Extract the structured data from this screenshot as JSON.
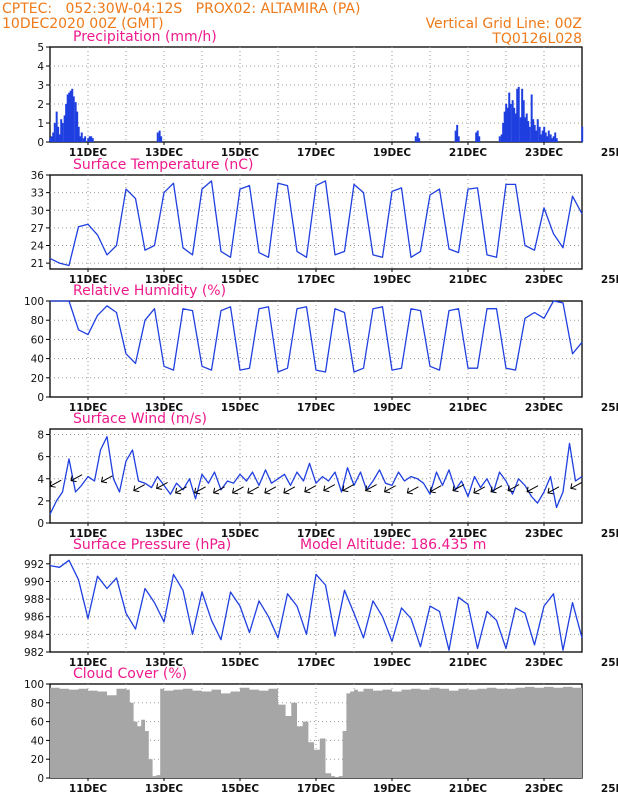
{
  "header": {
    "line1": "CPTEC:   052:30W-04:12S   PROX02: ALTAMIRA (PA)",
    "line2": "10DEC2020 00Z (GMT)",
    "right1": "Vertical Grid Line: 00Z",
    "right2": "TQ0126L028"
  },
  "colors": {
    "header": "#ee7a1a",
    "title": "#ee1a8c",
    "series": "#1f3fe0",
    "cloud": "#a6a6a6",
    "wind_arrow": "#000000"
  },
  "chart_data": [
    {
      "type": "bar",
      "title": "Precipitation (mm/h)",
      "ylim": [
        0,
        5
      ],
      "yticks": [
        0,
        1,
        2,
        3,
        4,
        5
      ],
      "xticks": [
        "11DEC",
        "13DEC",
        "15DEC",
        "17DEC",
        "19DEC",
        "21DEC",
        "23DEC",
        "25DEC"
      ],
      "x_unit": "days since 10DEC2020 00Z",
      "x": [
        0.0,
        0.04,
        0.08,
        0.12,
        0.17,
        0.21,
        0.25,
        0.29,
        0.33,
        0.38,
        0.42,
        0.46,
        0.5,
        0.54,
        0.58,
        0.62,
        0.67,
        0.71,
        0.75,
        0.79,
        0.83,
        0.88,
        0.92,
        1.0,
        1.04,
        1.08,
        1.12,
        2.83,
        2.88,
        2.92,
        9.62,
        9.67,
        9.71,
        10.67,
        10.71,
        10.75,
        11.21,
        11.25,
        11.29,
        11.83,
        11.88,
        11.92,
        11.96,
        12.0,
        12.04,
        12.08,
        12.12,
        12.17,
        12.21,
        12.25,
        12.29,
        12.33,
        12.38,
        12.42,
        12.46,
        12.5,
        12.54,
        12.58,
        12.62,
        12.67,
        12.71,
        12.75,
        12.79,
        12.83,
        12.88,
        12.92,
        12.96,
        13.0,
        13.04,
        13.08,
        13.12,
        13.17,
        13.21,
        13.25,
        13.29,
        13.33,
        14.0
      ],
      "values": [
        0.2,
        0.3,
        0.5,
        1.0,
        1.6,
        0.8,
        0.4,
        1.2,
        1.0,
        1.4,
        2.0,
        2.5,
        2.6,
        2.7,
        2.8,
        2.4,
        2.1,
        1.6,
        0.8,
        0.3,
        0.5,
        0.2,
        0.3,
        0.2,
        0.3,
        0.3,
        0.2,
        0.5,
        0.6,
        0.3,
        0.3,
        0.5,
        0.2,
        0.6,
        0.9,
        0.3,
        0.5,
        0.6,
        0.3,
        0.3,
        0.4,
        1.0,
        1.6,
        2.0,
        1.8,
        2.6,
        2.0,
        2.2,
        1.8,
        1.5,
        2.8,
        2.9,
        1.3,
        2.8,
        2.2,
        1.3,
        1.5,
        1.1,
        0.8,
        2.5,
        1.2,
        0.9,
        0.6,
        1.2,
        0.8,
        0.4,
        0.6,
        0.8,
        0.5,
        0.3,
        0.6,
        0.4,
        0.2,
        0.3,
        0.5,
        0.2,
        0.8
      ]
    },
    {
      "type": "line",
      "title": "Surface Temperature (nC)",
      "ylim": [
        20,
        36
      ],
      "yticks": [
        21,
        24,
        27,
        30,
        33,
        36
      ],
      "xticks": [
        "11DEC",
        "13DEC",
        "15DEC",
        "17DEC",
        "19DEC",
        "21DEC",
        "23DEC",
        "25DEC"
      ],
      "x_unit": "days since 10DEC2020 00Z",
      "x": [
        0.0,
        0.25,
        0.5,
        0.75,
        1.0,
        1.25,
        1.5,
        1.75,
        2.0,
        2.25,
        2.5,
        2.75,
        3.0,
        3.25,
        3.5,
        3.75,
        4.0,
        4.25,
        4.5,
        4.75,
        5.0,
        5.25,
        5.5,
        5.75,
        6.0,
        6.25,
        6.5,
        6.75,
        7.0,
        7.25,
        7.5,
        7.75,
        8.0,
        8.25,
        8.5,
        8.75,
        9.0,
        9.25,
        9.5,
        9.75,
        10.0,
        10.25,
        10.5,
        10.75,
        11.0,
        11.25,
        11.5,
        11.75,
        12.0,
        12.25,
        12.5,
        12.75,
        13.0,
        13.25,
        13.5,
        13.75,
        14.0
      ],
      "values": [
        21.8,
        21.0,
        20.6,
        27.2,
        27.6,
        25.8,
        22.4,
        24.0,
        33.6,
        32.0,
        23.2,
        24.0,
        33.0,
        34.6,
        23.6,
        22.4,
        33.6,
        35.0,
        23.0,
        22.0,
        33.6,
        34.2,
        22.8,
        22.0,
        34.6,
        34.2,
        23.0,
        22.0,
        34.2,
        35.0,
        22.4,
        23.0,
        34.4,
        33.0,
        22.4,
        22.0,
        33.2,
        33.8,
        22.0,
        23.0,
        32.6,
        33.6,
        23.4,
        22.8,
        33.6,
        33.8,
        22.4,
        22.0,
        34.4,
        34.4,
        24.0,
        23.2,
        30.4,
        26.0,
        23.6,
        32.4,
        29.4
      ]
    },
    {
      "type": "line",
      "title": "Relative Humidity (%)",
      "ylim": [
        0,
        100
      ],
      "yticks": [
        0,
        20,
        40,
        60,
        80,
        100
      ],
      "xticks": [
        "11DEC",
        "13DEC",
        "15DEC",
        "17DEC",
        "19DEC",
        "21DEC",
        "23DEC",
        "25DEC"
      ],
      "x_unit": "days since 10DEC2020 00Z",
      "x": [
        0.0,
        0.25,
        0.5,
        0.75,
        1.0,
        1.25,
        1.5,
        1.75,
        2.0,
        2.25,
        2.5,
        2.75,
        3.0,
        3.25,
        3.5,
        3.75,
        4.0,
        4.25,
        4.5,
        4.75,
        5.0,
        5.25,
        5.5,
        5.75,
        6.0,
        6.25,
        6.5,
        6.75,
        7.0,
        7.25,
        7.5,
        7.75,
        8.0,
        8.25,
        8.5,
        8.75,
        9.0,
        9.25,
        9.5,
        9.75,
        10.0,
        10.25,
        10.5,
        10.75,
        11.0,
        11.25,
        11.5,
        11.75,
        12.0,
        12.25,
        12.5,
        12.75,
        13.0,
        13.25,
        13.5,
        13.75,
        14.0
      ],
      "values": [
        100,
        100,
        100,
        70,
        65,
        85,
        95,
        88,
        45,
        35,
        80,
        92,
        32,
        28,
        92,
        90,
        32,
        28,
        90,
        94,
        28,
        30,
        92,
        94,
        26,
        30,
        92,
        94,
        28,
        26,
        92,
        88,
        26,
        30,
        92,
        94,
        28,
        30,
        92,
        90,
        32,
        28,
        90,
        92,
        30,
        30,
        92,
        92,
        30,
        28,
        82,
        88,
        82,
        100,
        98,
        45,
        57
      ]
    },
    {
      "type": "line",
      "title": "Surface Wind (m/s)",
      "ylim": [
        0,
        8.5
      ],
      "yticks": [
        0,
        2,
        4,
        6,
        8
      ],
      "xticks": [
        "11DEC",
        "13DEC",
        "15DEC",
        "17DEC",
        "19DEC",
        "21DEC",
        "23DEC",
        "25DEC"
      ],
      "x_unit": "days since 10DEC2020 00Z",
      "x": [
        0.0,
        0.17,
        0.33,
        0.5,
        0.67,
        0.83,
        1.0,
        1.17,
        1.33,
        1.5,
        1.67,
        1.83,
        2.0,
        2.17,
        2.33,
        2.5,
        2.67,
        2.83,
        3.0,
        3.17,
        3.33,
        3.5,
        3.67,
        3.83,
        4.0,
        4.17,
        4.33,
        4.5,
        4.67,
        4.83,
        5.0,
        5.17,
        5.33,
        5.5,
        5.67,
        5.83,
        6.0,
        6.17,
        6.33,
        6.5,
        6.67,
        6.83,
        7.0,
        7.17,
        7.33,
        7.5,
        7.67,
        7.83,
        8.0,
        8.17,
        8.33,
        8.5,
        8.67,
        8.83,
        9.0,
        9.17,
        9.33,
        9.5,
        9.67,
        9.83,
        10.0,
        10.17,
        10.33,
        10.5,
        10.67,
        10.83,
        11.0,
        11.17,
        11.33,
        11.5,
        11.67,
        11.83,
        12.0,
        12.17,
        12.33,
        12.5,
        12.67,
        12.83,
        13.0,
        13.17,
        13.33,
        13.5,
        13.67,
        13.83,
        14.0
      ],
      "values": [
        0.8,
        2.0,
        2.8,
        5.8,
        2.8,
        3.4,
        4.2,
        3.8,
        6.6,
        7.8,
        4.0,
        2.8,
        5.6,
        6.6,
        3.8,
        3.6,
        3.2,
        4.2,
        3.4,
        2.6,
        3.6,
        3.0,
        4.0,
        2.2,
        4.4,
        3.6,
        4.6,
        3.0,
        3.8,
        3.6,
        4.4,
        3.8,
        4.6,
        3.4,
        4.8,
        3.6,
        4.0,
        4.4,
        3.4,
        4.6,
        3.8,
        5.4,
        3.6,
        4.2,
        3.8,
        4.6,
        2.8,
        5.0,
        3.4,
        4.6,
        3.0,
        3.8,
        4.8,
        3.6,
        3.4,
        4.6,
        3.8,
        4.2,
        4.0,
        3.6,
        2.6,
        4.6,
        3.4,
        4.8,
        3.0,
        3.8,
        2.4,
        4.2,
        3.2,
        4.0,
        2.8,
        4.6,
        3.8,
        2.6,
        4.0,
        3.4,
        2.4,
        1.8,
        2.8,
        4.2,
        1.4,
        2.8,
        7.2,
        3.8,
        4.2
      ],
      "arrows_x": [
        0.15,
        0.7,
        1.5,
        2.35,
        2.95,
        3.45,
        3.95,
        4.45,
        4.95,
        5.35,
        5.8,
        6.3,
        6.85,
        7.35,
        7.85,
        8.45,
        8.95,
        9.55,
        10.15,
        10.75,
        11.3,
        11.75,
        12.2,
        12.7,
        13.25,
        13.85
      ],
      "arrows_y": [
        3.6,
        4.1,
        4.0,
        3.2,
        3.4,
        3.0,
        3.0,
        3.0,
        3.0,
        3.0,
        3.0,
        3.0,
        3.1,
        3.2,
        3.2,
        3.2,
        3.1,
        3.0,
        3.1,
        3.2,
        3.0,
        3.1,
        3.2,
        3.1,
        3.0,
        3.4
      ]
    },
    {
      "type": "line",
      "title": "Surface Pressure (hPa)",
      "annotation": "Model Altitude: 186.435 m",
      "ylim": [
        982,
        993
      ],
      "yticks": [
        982,
        984,
        986,
        988,
        990,
        992
      ],
      "xticks": [
        "11DEC",
        "13DEC",
        "15DEC",
        "17DEC",
        "19DEC",
        "21DEC",
        "23DEC",
        "25DEC"
      ],
      "x_unit": "days since 10DEC2020 00Z",
      "x": [
        0.0,
        0.25,
        0.5,
        0.75,
        1.0,
        1.25,
        1.5,
        1.75,
        2.0,
        2.25,
        2.5,
        2.75,
        3.0,
        3.25,
        3.5,
        3.75,
        4.0,
        4.25,
        4.5,
        4.75,
        5.0,
        5.25,
        5.5,
        5.75,
        6.0,
        6.25,
        6.5,
        6.75,
        7.0,
        7.25,
        7.5,
        7.75,
        8.0,
        8.25,
        8.5,
        8.75,
        9.0,
        9.25,
        9.5,
        9.75,
        10.0,
        10.25,
        10.5,
        10.75,
        11.0,
        11.25,
        11.5,
        11.75,
        12.0,
        12.25,
        12.5,
        12.75,
        13.0,
        13.25,
        13.5,
        13.75,
        14.0
      ],
      "values": [
        991.8,
        991.6,
        992.4,
        990.2,
        985.8,
        990.6,
        989.2,
        990.4,
        986.4,
        984.6,
        989.2,
        987.6,
        985.4,
        990.8,
        989.0,
        984.0,
        988.8,
        985.6,
        983.4,
        988.8,
        987.2,
        984.2,
        987.8,
        986.0,
        983.6,
        988.6,
        987.2,
        984.0,
        990.8,
        989.6,
        983.8,
        989.0,
        986.4,
        983.6,
        987.8,
        986.0,
        983.2,
        987.0,
        985.8,
        982.6,
        987.2,
        986.6,
        982.2,
        988.2,
        987.4,
        982.4,
        986.6,
        985.6,
        982.4,
        987.0,
        986.4,
        982.8,
        987.2,
        988.6,
        982.2,
        987.6,
        983.6
      ]
    },
    {
      "type": "bar",
      "title": "Cloud Cover (%)",
      "ylim": [
        0,
        100
      ],
      "yticks": [
        0,
        20,
        40,
        60,
        80,
        100
      ],
      "xticks": [
        "11DEC",
        "13DEC",
        "15DEC",
        "17DEC",
        "19DEC",
        "21DEC",
        "23DEC",
        "25DEC"
      ],
      "x_unit": "days since 10DEC2020 00Z",
      "x": [
        0.0,
        0.25,
        0.5,
        0.75,
        1.0,
        1.25,
        1.5,
        1.75,
        2.0,
        2.1,
        2.2,
        2.3,
        2.4,
        2.5,
        2.6,
        2.7,
        2.8,
        2.9,
        3.0,
        3.25,
        3.5,
        3.75,
        4.0,
        4.25,
        4.5,
        4.75,
        5.0,
        5.25,
        5.5,
        5.75,
        6.0,
        6.2,
        6.35,
        6.5,
        6.65,
        6.8,
        6.95,
        7.1,
        7.25,
        7.4,
        7.5,
        7.6,
        7.7,
        7.8,
        7.9,
        8.0,
        8.1,
        8.25,
        8.5,
        8.75,
        9.0,
        9.25,
        9.5,
        9.75,
        10.0,
        10.25,
        10.5,
        10.75,
        11.0,
        11.25,
        11.5,
        11.75,
        12.0,
        12.25,
        12.5,
        12.75,
        13.0,
        13.25,
        13.5,
        13.75,
        14.0
      ],
      "values": [
        96,
        95,
        94,
        95,
        93,
        92,
        88,
        95,
        94,
        80,
        60,
        55,
        62,
        50,
        20,
        2,
        3,
        95,
        93,
        94,
        95,
        93,
        92,
        94,
        90,
        92,
        96,
        94,
        93,
        95,
        78,
        66,
        80,
        55,
        60,
        38,
        30,
        42,
        5,
        2,
        1,
        2,
        50,
        90,
        92,
        94,
        92,
        95,
        93,
        94,
        92,
        94,
        95,
        94,
        96,
        95,
        93,
        95,
        94,
        95,
        96,
        95,
        95,
        96,
        97,
        96,
        97,
        96,
        97,
        96,
        97
      ]
    }
  ]
}
